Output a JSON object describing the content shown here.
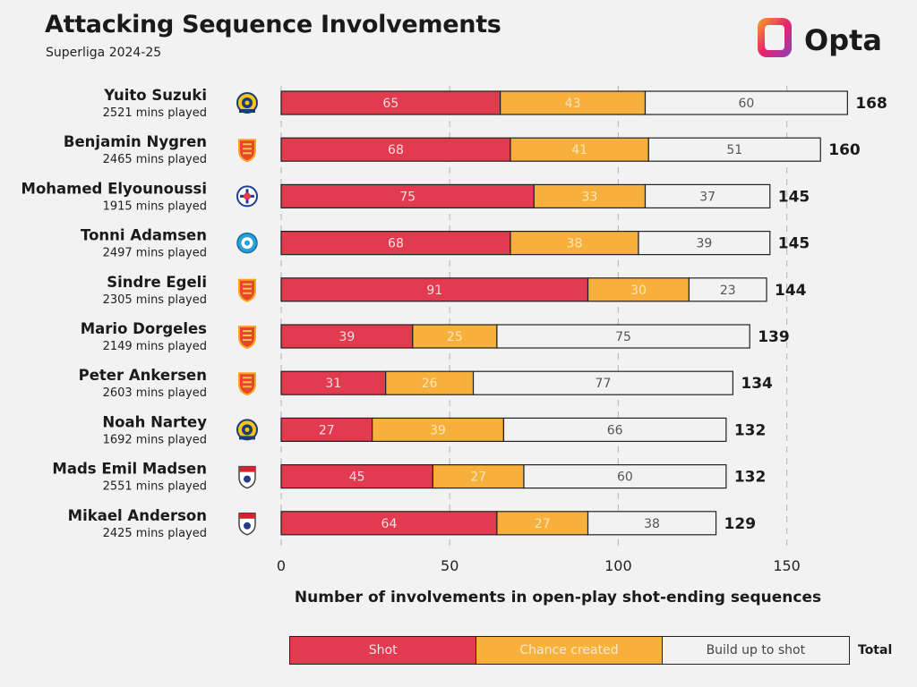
{
  "title": "Attacking Sequence Involvements",
  "subtitle": "Superliga 2024-25",
  "brand": {
    "name": "Opta",
    "colors": [
      "#e8246b",
      "#f5a623",
      "#8b3fb8"
    ]
  },
  "colors": {
    "shot": "#e23a4e",
    "chance": "#f6b03b",
    "build": "#f2f2f2",
    "grid": "#bdbdbd",
    "text": "#1a1a1a"
  },
  "legend": {
    "items": [
      {
        "label": "Shot",
        "color": "#e23a4e"
      },
      {
        "label": "Chance created",
        "color": "#f6b03b"
      },
      {
        "label": "Build up to shot",
        "color": "#f2f2f2"
      }
    ],
    "total_label": "Total"
  },
  "chart_data": {
    "type": "bar",
    "orientation": "horizontal",
    "stacked": true,
    "title": "Attacking Sequence Involvements",
    "subtitle": "Superliga 2024-25",
    "xlabel": "Number of involvements in open-play shot-ending sequences",
    "xlim": [
      0,
      150
    ],
    "xticks": [
      0,
      50,
      100,
      150
    ],
    "grid": true,
    "legend_position": "bottom",
    "categories": [
      {
        "name": "Yuito Suzuki",
        "mins": "2521 mins played",
        "club": "brondby"
      },
      {
        "name": "Benjamin Nygren",
        "mins": "2465 mins played",
        "club": "nordsjaelland"
      },
      {
        "name": "Mohamed Elyounoussi",
        "mins": "1915 mins played",
        "club": "copenhagen"
      },
      {
        "name": "Tonni Adamsen",
        "mins": "2497 mins played",
        "club": "silkeborg"
      },
      {
        "name": "Sindre Egeli",
        "mins": "2305 mins played",
        "club": "nordsjaelland"
      },
      {
        "name": "Mario Dorgeles",
        "mins": "2149 mins played",
        "club": "nordsjaelland"
      },
      {
        "name": "Peter Ankersen",
        "mins": "2603 mins played",
        "club": "nordsjaelland"
      },
      {
        "name": "Noah Nartey",
        "mins": "1692 mins played",
        "club": "brondby"
      },
      {
        "name": "Mads Emil Madsen",
        "mins": "2551 mins played",
        "club": "agf"
      },
      {
        "name": "Mikael Anderson",
        "mins": "2425 mins played",
        "club": "agf"
      }
    ],
    "series": [
      {
        "name": "Shot",
        "values": [
          65,
          68,
          75,
          68,
          91,
          39,
          31,
          27,
          45,
          64
        ]
      },
      {
        "name": "Chance created",
        "values": [
          43,
          41,
          33,
          38,
          30,
          25,
          26,
          39,
          27,
          27
        ]
      },
      {
        "name": "Build up to shot",
        "values": [
          60,
          51,
          37,
          39,
          23,
          75,
          77,
          66,
          60,
          38
        ]
      }
    ],
    "totals": [
      168,
      160,
      145,
      145,
      144,
      139,
      134,
      132,
      132,
      129
    ]
  }
}
